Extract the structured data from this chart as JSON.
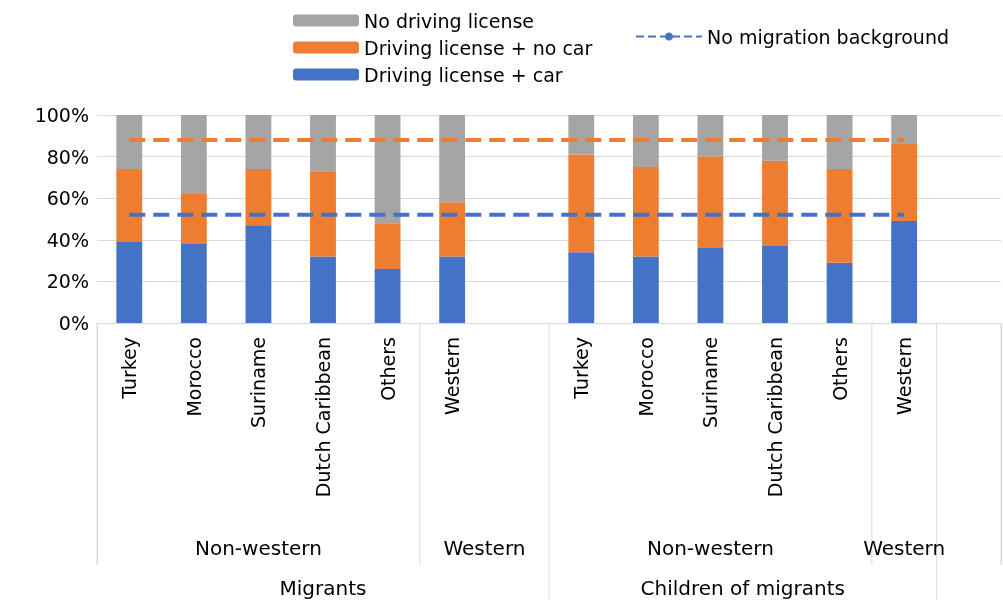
{
  "chart_data": {
    "type": "bar",
    "stacked": true,
    "categories": [
      "Turkey",
      "Morocco",
      "Suriname",
      "Dutch Caribbean",
      "Others",
      "Western",
      null,
      "Turkey",
      "Morocco",
      "Suriname",
      "Dutch Caribbean",
      "Others",
      "Western",
      null
    ],
    "series": [
      {
        "name": "Driving license + car",
        "color": "#4472c4",
        "values": [
          39,
          38,
          47,
          32,
          26,
          32,
          null,
          34,
          32,
          36,
          37,
          29,
          49,
          null
        ]
      },
      {
        "name": "Driving license + no car",
        "color": "#ed7d31",
        "values": [
          35,
          24,
          27,
          41,
          22,
          26,
          null,
          47,
          43,
          44,
          41,
          45,
          37,
          null
        ]
      },
      {
        "name": "No driving license",
        "color": "#a5a5a5",
        "values": [
          26,
          38,
          26,
          27,
          52,
          42,
          null,
          19,
          25,
          20,
          22,
          26,
          14,
          null
        ]
      },
      {
        "name": "No migration background",
        "type": "line",
        "line_style": "dashed",
        "marker": "none",
        "color": "#4472c4",
        "values": [
          52,
          52,
          52,
          52,
          52,
          52,
          52,
          52,
          52,
          52,
          52,
          52,
          52,
          null
        ]
      },
      {
        "type": "line",
        "line_style": "dashed",
        "marker": "none",
        "color": "#ed7d31",
        "values": [
          88,
          88,
          88,
          88,
          88,
          88,
          88,
          88,
          88,
          88,
          88,
          88,
          88,
          null
        ]
      }
    ],
    "ylim": [
      0,
      100
    ],
    "yticks": [
      {
        "value": 0,
        "label": "0%"
      },
      {
        "value": 20,
        "label": "20%"
      },
      {
        "value": 40,
        "label": "40%"
      },
      {
        "value": 60,
        "label": "60%"
      },
      {
        "value": 80,
        "label": "80%"
      },
      {
        "value": 100,
        "label": "100%"
      }
    ],
    "grid": "y",
    "legend": "top",
    "annotations": [
      "Non-western",
      "Western",
      "Non-western",
      "Western",
      "Migrants",
      "Children of migrants"
    ]
  }
}
